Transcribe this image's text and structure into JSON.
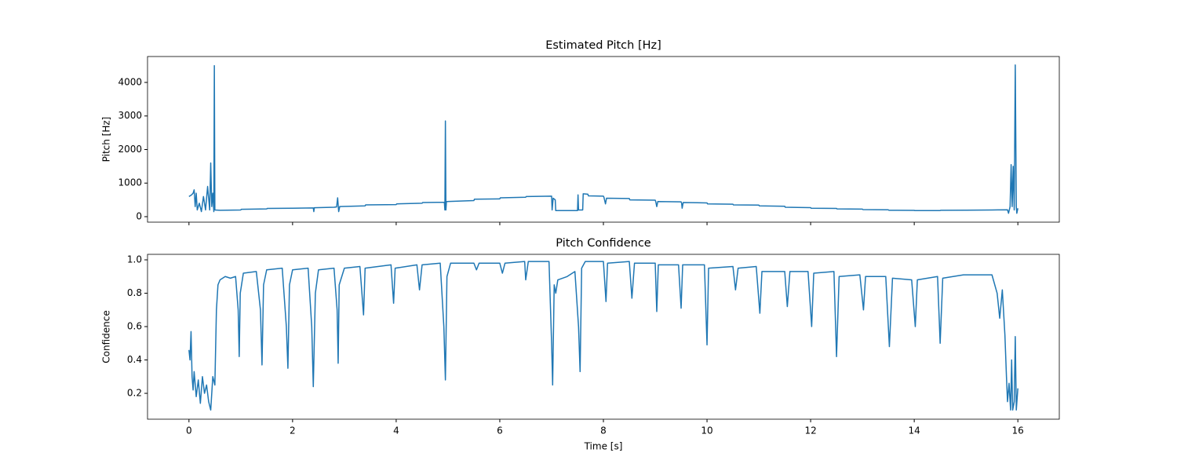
{
  "chart_data": [
    {
      "type": "line",
      "title": "Estimated Pitch [Hz]",
      "ylabel": "Pitch [Hz]",
      "color": "#1f77b4",
      "xlim": [
        -0.8,
        16.8
      ],
      "xticks": [
        0,
        2,
        4,
        6,
        8,
        10,
        12,
        14,
        16
      ],
      "ylim": [
        -164,
        4772
      ],
      "yticks": [
        0,
        1000,
        2000,
        3000,
        4000
      ],
      "x": [
        0.0,
        0.05,
        0.08,
        0.1,
        0.12,
        0.14,
        0.16,
        0.2,
        0.24,
        0.28,
        0.32,
        0.36,
        0.4,
        0.42,
        0.44,
        0.46,
        0.48,
        0.49,
        0.5,
        0.6,
        1.0,
        1.01,
        1.5,
        1.51,
        2.0,
        2.4,
        2.41,
        2.42,
        2.8,
        2.85,
        2.87,
        2.89,
        2.91,
        3.4,
        3.41,
        4.0,
        4.01,
        4.5,
        4.51,
        4.93,
        4.94,
        4.95,
        4.96,
        4.97,
        5.5,
        5.51,
        6.0,
        6.01,
        6.5,
        6.51,
        7.0,
        7.01,
        7.03,
        7.07,
        7.08,
        7.5,
        7.51,
        7.52,
        7.6,
        7.61,
        7.7,
        7.71,
        8.0,
        8.01,
        8.04,
        8.06,
        8.5,
        8.51,
        9.0,
        9.01,
        9.03,
        9.05,
        9.5,
        9.51,
        9.52,
        9.54,
        10.0,
        10.01,
        10.5,
        10.51,
        11.0,
        11.01,
        11.5,
        11.51,
        12.0,
        12.01,
        12.5,
        12.51,
        13.0,
        13.01,
        13.5,
        13.51,
        14.0,
        14.01,
        14.5,
        14.51,
        15.0,
        15.5,
        15.8,
        15.82,
        15.85,
        15.87,
        15.89,
        15.91,
        15.93,
        15.95,
        15.97,
        15.98,
        16.0
      ],
      "values": [
        600,
        650,
        700,
        800,
        300,
        700,
        200,
        400,
        150,
        600,
        200,
        900,
        200,
        1600,
        300,
        700,
        150,
        4500,
        200,
        190,
        200,
        220,
        230,
        245,
        250,
        260,
        150,
        265,
        280,
        290,
        560,
        150,
        300,
        320,
        350,
        360,
        380,
        400,
        420,
        430,
        200,
        2850,
        200,
        450,
        480,
        520,
        530,
        560,
        580,
        600,
        610,
        200,
        550,
        500,
        180,
        180,
        650,
        200,
        200,
        680,
        670,
        620,
        610,
        580,
        380,
        550,
        540,
        500,
        490,
        450,
        300,
        450,
        440,
        400,
        250,
        420,
        410,
        380,
        370,
        350,
        345,
        320,
        310,
        280,
        270,
        250,
        245,
        230,
        225,
        210,
        205,
        190,
        188,
        180,
        182,
        190,
        192,
        200,
        205,
        100,
        300,
        1550,
        300,
        1500,
        200,
        4520,
        300,
        100,
        250
      ]
    },
    {
      "type": "line",
      "title": "Pitch Confidence",
      "ylabel": "Confidence",
      "xlabel": "Time [s]",
      "color": "#1f77b4",
      "xlim": [
        -0.8,
        16.8
      ],
      "xticks": [
        0,
        2,
        4,
        6,
        8,
        10,
        12,
        14,
        16
      ],
      "ylim": [
        0.045,
        1.033
      ],
      "yticks": [
        0.2,
        0.4,
        0.6,
        0.8,
        {
          "value": 1,
          "label": "1.0"
        }
      ],
      "x": [
        0.0,
        0.02,
        0.04,
        0.06,
        0.08,
        0.1,
        0.14,
        0.18,
        0.22,
        0.26,
        0.3,
        0.34,
        0.38,
        0.42,
        0.46,
        0.5,
        0.53,
        0.56,
        0.6,
        0.7,
        0.8,
        0.9,
        0.95,
        0.97,
        0.99,
        1.05,
        1.3,
        1.38,
        1.41,
        1.44,
        1.5,
        1.8,
        1.88,
        1.91,
        1.94,
        2.0,
        2.3,
        2.37,
        2.4,
        2.44,
        2.5,
        2.8,
        2.86,
        2.88,
        2.9,
        3.0,
        3.3,
        3.37,
        3.4,
        3.9,
        3.95,
        3.98,
        4.4,
        4.45,
        4.5,
        4.85,
        4.92,
        4.95,
        4.98,
        5.05,
        5.5,
        5.55,
        5.6,
        6.0,
        6.05,
        6.1,
        6.48,
        6.5,
        6.55,
        6.95,
        7.0,
        7.02,
        7.05,
        7.08,
        7.12,
        7.3,
        7.45,
        7.52,
        7.55,
        7.58,
        7.65,
        8.0,
        8.05,
        8.08,
        8.5,
        8.55,
        8.6,
        9.0,
        9.03,
        9.06,
        9.45,
        9.5,
        9.53,
        9.95,
        10.0,
        10.03,
        10.5,
        10.55,
        10.6,
        10.95,
        11.02,
        11.06,
        11.5,
        11.55,
        11.6,
        11.95,
        12.02,
        12.06,
        12.45,
        12.5,
        12.55,
        12.95,
        13.02,
        13.06,
        13.45,
        13.52,
        13.58,
        13.95,
        14.02,
        14.06,
        14.45,
        14.5,
        14.55,
        14.95,
        15.3,
        15.5,
        15.6,
        15.65,
        15.7,
        15.75,
        15.78,
        15.8,
        15.83,
        15.86,
        15.88,
        15.9,
        15.93,
        15.95,
        15.97,
        16.0
      ],
      "values": [
        0.46,
        0.4,
        0.57,
        0.3,
        0.22,
        0.33,
        0.18,
        0.28,
        0.14,
        0.3,
        0.2,
        0.25,
        0.15,
        0.1,
        0.3,
        0.25,
        0.7,
        0.85,
        0.88,
        0.9,
        0.89,
        0.9,
        0.7,
        0.42,
        0.8,
        0.92,
        0.93,
        0.7,
        0.37,
        0.85,
        0.94,
        0.95,
        0.6,
        0.35,
        0.85,
        0.94,
        0.95,
        0.6,
        0.24,
        0.8,
        0.94,
        0.95,
        0.7,
        0.38,
        0.85,
        0.95,
        0.96,
        0.67,
        0.95,
        0.97,
        0.74,
        0.95,
        0.97,
        0.82,
        0.97,
        0.98,
        0.6,
        0.28,
        0.9,
        0.98,
        0.98,
        0.94,
        0.98,
        0.98,
        0.92,
        0.98,
        0.99,
        0.88,
        0.99,
        0.99,
        0.5,
        0.25,
        0.85,
        0.8,
        0.88,
        0.9,
        0.93,
        0.6,
        0.33,
        0.95,
        0.99,
        0.99,
        0.75,
        0.98,
        0.99,
        0.77,
        0.98,
        0.98,
        0.69,
        0.97,
        0.97,
        0.71,
        0.97,
        0.97,
        0.49,
        0.95,
        0.96,
        0.82,
        0.95,
        0.96,
        0.68,
        0.93,
        0.93,
        0.72,
        0.93,
        0.93,
        0.6,
        0.92,
        0.93,
        0.42,
        0.9,
        0.91,
        0.7,
        0.9,
        0.9,
        0.48,
        0.89,
        0.88,
        0.6,
        0.88,
        0.9,
        0.5,
        0.89,
        0.91,
        0.91,
        0.91,
        0.8,
        0.65,
        0.82,
        0.55,
        0.3,
        0.15,
        0.26,
        0.1,
        0.4,
        0.1,
        0.15,
        0.54,
        0.1,
        0.23
      ]
    }
  ]
}
